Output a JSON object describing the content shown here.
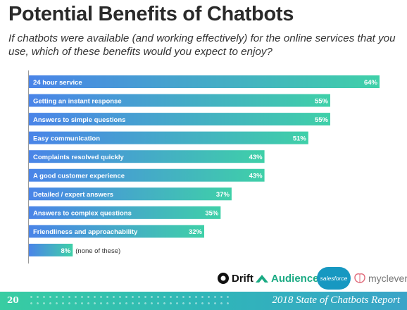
{
  "header": {
    "title": "Potential Benefits of Chatbots",
    "subtitle": "If chatbots were available (and working effectively) for the online services that you use, which of these benefits would you expect to enjoy?"
  },
  "chart_data": {
    "type": "bar",
    "orientation": "horizontal",
    "title": "Potential Benefits of Chatbots",
    "categories": [
      "24 hour service",
      "Getting an instant response",
      "Answers to simple questions",
      "Easy communication",
      "Complaints resolved quickly",
      "A good customer experience",
      "Detailed / expert answers",
      "Answers to complex questions",
      "Friendliness and approachability",
      "(none of these)"
    ],
    "values": [
      64,
      55,
      55,
      51,
      43,
      43,
      37,
      35,
      32,
      8
    ],
    "value_labels": [
      "64%",
      "55%",
      "55%",
      "51%",
      "43%",
      "43%",
      "37%",
      "35%",
      "32%",
      "8%"
    ],
    "xlim": [
      0,
      64
    ],
    "grid": false,
    "colors": {
      "bar_start": "#4a84e8",
      "bar_end": "#3fd0a8",
      "text": "#ffffff"
    }
  },
  "logos": {
    "drift": "Drift",
    "audience": "Audience",
    "salesforce": "salesforce",
    "myclever": "myclever"
  },
  "footer": {
    "page_number": "20",
    "report_title": "2018 State of Chatbots Report"
  }
}
